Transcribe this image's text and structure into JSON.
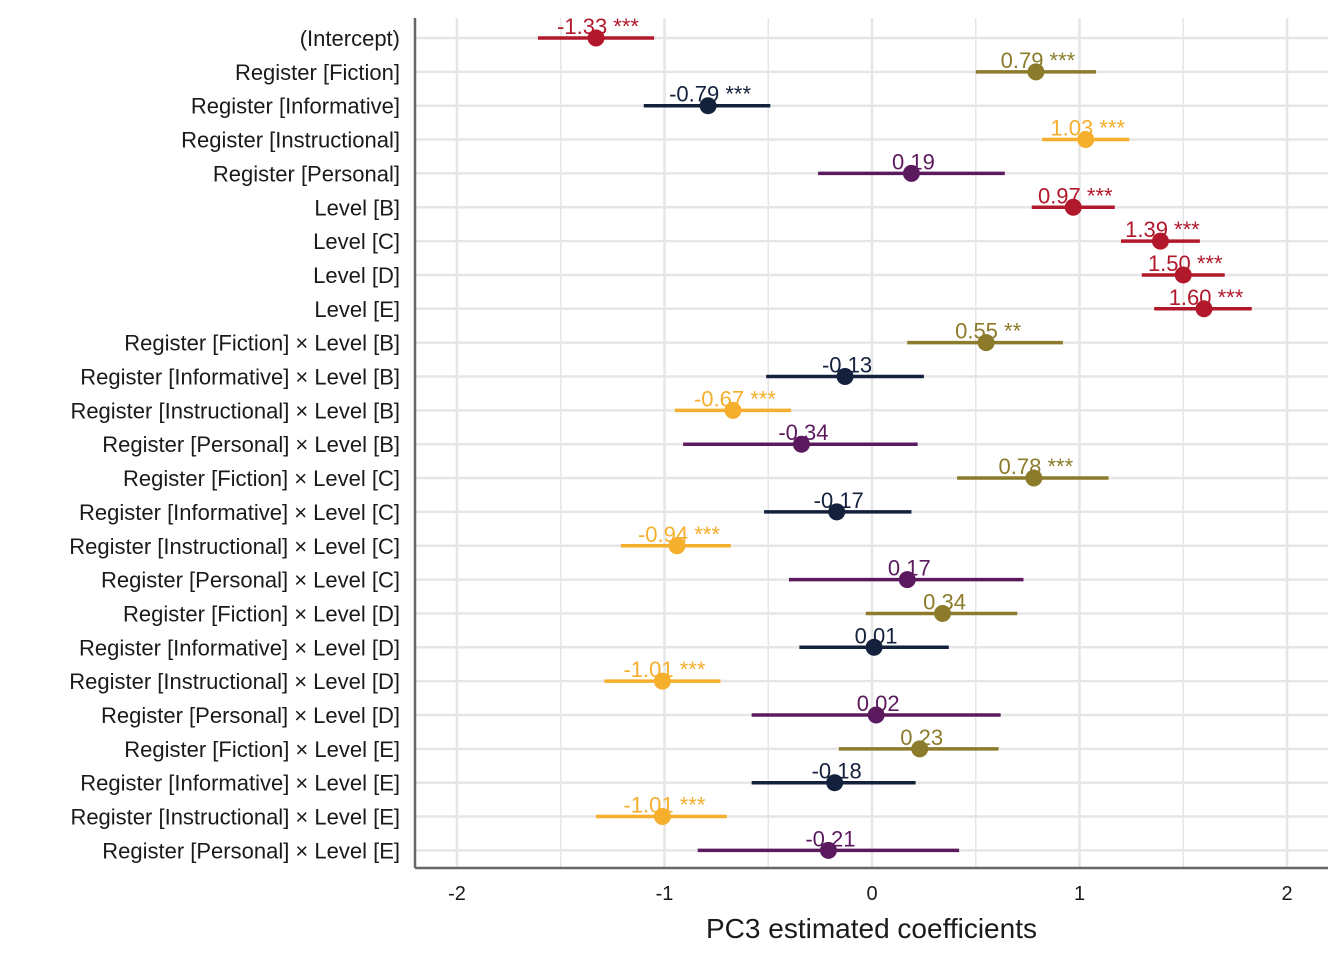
{
  "chart_data": {
    "type": "scatter",
    "xlabel": "PC3 estimated coefficients",
    "ylabel": "",
    "xlim": [
      -2.2,
      2.2
    ],
    "x_ticks": [
      -2,
      -1,
      0,
      1,
      2
    ],
    "x_tick_labels": [
      "-2",
      "-1",
      "0",
      "1",
      "2"
    ],
    "grid": true,
    "legend": "none",
    "colors": {
      "intercept_level": "#b2182b",
      "fiction": "#8c7b2b",
      "informative": "#14213d",
      "instructional": "#f6ae2d",
      "personal": "#5c1a5e"
    },
    "terms": [
      {
        "label": "(Intercept)",
        "estimate": -1.33,
        "ci_low": -1.61,
        "ci_high": -1.05,
        "text": "-1.33 ***",
        "color_key": "intercept_level"
      },
      {
        "label": "Register [Fiction]",
        "estimate": 0.79,
        "ci_low": 0.5,
        "ci_high": 1.08,
        "text": "0.79 ***",
        "color_key": "fiction"
      },
      {
        "label": "Register [Informative]",
        "estimate": -0.79,
        "ci_low": -1.1,
        "ci_high": -0.49,
        "text": "-0.79 ***",
        "color_key": "informative"
      },
      {
        "label": "Register [Instructional]",
        "estimate": 1.03,
        "ci_low": 0.82,
        "ci_high": 1.24,
        "text": "1.03 ***",
        "color_key": "instructional"
      },
      {
        "label": "Register [Personal]",
        "estimate": 0.19,
        "ci_low": -0.26,
        "ci_high": 0.64,
        "text": "0.19",
        "color_key": "personal"
      },
      {
        "label": "Level [B]",
        "estimate": 0.97,
        "ci_low": 0.77,
        "ci_high": 1.17,
        "text": "0.97 ***",
        "color_key": "intercept_level"
      },
      {
        "label": "Level [C]",
        "estimate": 1.39,
        "ci_low": 1.2,
        "ci_high": 1.58,
        "text": "1.39 ***",
        "color_key": "intercept_level"
      },
      {
        "label": "Level [D]",
        "estimate": 1.5,
        "ci_low": 1.3,
        "ci_high": 1.7,
        "text": "1.50 ***",
        "color_key": "intercept_level"
      },
      {
        "label": "Level [E]",
        "estimate": 1.6,
        "ci_low": 1.36,
        "ci_high": 1.83,
        "text": "1.60 ***",
        "color_key": "intercept_level"
      },
      {
        "label": "Register [Fiction] × Level [B]",
        "estimate": 0.55,
        "ci_low": 0.17,
        "ci_high": 0.92,
        "text": "0.55 **",
        "color_key": "fiction"
      },
      {
        "label": "Register [Informative] × Level [B]",
        "estimate": -0.13,
        "ci_low": -0.51,
        "ci_high": 0.25,
        "text": "-0.13",
        "color_key": "informative"
      },
      {
        "label": "Register [Instructional] × Level [B]",
        "estimate": -0.67,
        "ci_low": -0.95,
        "ci_high": -0.39,
        "text": "-0.67 ***",
        "color_key": "instructional"
      },
      {
        "label": "Register [Personal] × Level [B]",
        "estimate": -0.34,
        "ci_low": -0.91,
        "ci_high": 0.22,
        "text": "-0.34",
        "color_key": "personal"
      },
      {
        "label": "Register [Fiction] × Level [C]",
        "estimate": 0.78,
        "ci_low": 0.41,
        "ci_high": 1.14,
        "text": "0.78 ***",
        "color_key": "fiction"
      },
      {
        "label": "Register [Informative] × Level [C]",
        "estimate": -0.17,
        "ci_low": -0.52,
        "ci_high": 0.19,
        "text": "-0.17",
        "color_key": "informative"
      },
      {
        "label": "Register [Instructional] × Level [C]",
        "estimate": -0.94,
        "ci_low": -1.21,
        "ci_high": -0.68,
        "text": "-0.94 ***",
        "color_key": "instructional"
      },
      {
        "label": "Register [Personal] × Level [C]",
        "estimate": 0.17,
        "ci_low": -0.4,
        "ci_high": 0.73,
        "text": "0.17",
        "color_key": "personal"
      },
      {
        "label": "Register [Fiction] × Level [D]",
        "estimate": 0.34,
        "ci_low": -0.03,
        "ci_high": 0.7,
        "text": "0.34",
        "color_key": "fiction"
      },
      {
        "label": "Register [Informative] × Level [D]",
        "estimate": 0.01,
        "ci_low": -0.35,
        "ci_high": 0.37,
        "text": "0.01",
        "color_key": "informative"
      },
      {
        "label": "Register [Instructional] × Level [D]",
        "estimate": -1.01,
        "ci_low": -1.29,
        "ci_high": -0.73,
        "text": "-1.01 ***",
        "color_key": "instructional"
      },
      {
        "label": "Register [Personal] × Level [D]",
        "estimate": 0.02,
        "ci_low": -0.58,
        "ci_high": 0.62,
        "text": "0.02",
        "color_key": "personal"
      },
      {
        "label": "Register [Fiction] × Level [E]",
        "estimate": 0.23,
        "ci_low": -0.16,
        "ci_high": 0.61,
        "text": "0.23",
        "color_key": "fiction"
      },
      {
        "label": "Register [Informative] × Level [E]",
        "estimate": -0.18,
        "ci_low": -0.58,
        "ci_high": 0.21,
        "text": "-0.18",
        "color_key": "informative"
      },
      {
        "label": "Register [Instructional] × Level [E]",
        "estimate": -1.01,
        "ci_low": -1.33,
        "ci_high": -0.7,
        "text": "-1.01 ***",
        "color_key": "instructional"
      },
      {
        "label": "Register [Personal] × Level [E]",
        "estimate": -0.21,
        "ci_low": -0.84,
        "ci_high": 0.42,
        "text": "-0.21",
        "color_key": "personal"
      }
    ]
  }
}
